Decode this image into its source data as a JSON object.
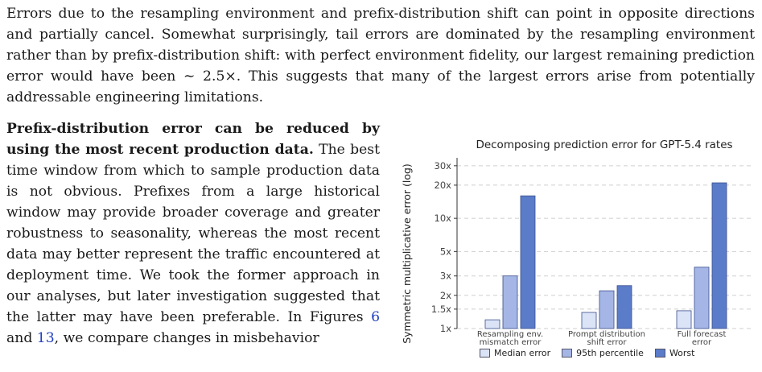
{
  "paragraph_top": "Errors due to the resampling environment and prefix-distribution shift can point in opposite directions and partially cancel. Somewhat surprisingly, tail errors are dominated by the resampling environment rather than by prefix-distribution shift: with perfect environment fidelity, our largest remaining prediction error would have been ∼ 2.5×. This suggests that many of the largest errors arise from potentially addressable engineering limitations.",
  "left_column": {
    "lead": "Prefix-distribution error can be reduced by using the most recent production data.",
    "body_1": " The best time window from which to sample production data is not obvious. Prefixes from a large historical window may provide broader coverage and greater robustness to seasonality, whereas the most recent data may better represent the traffic encountered at deployment time. We took the former approach in our analyses, but later investigation suggested that the latter may have been preferable. In Figures ",
    "ref_1": "6",
    "body_2": " and ",
    "ref_2": "13",
    "body_3": ", we compare changes in misbehavior"
  },
  "chart_data": {
    "type": "bar",
    "title": "Decomposing prediction error for GPT-5.4 rates",
    "ylabel": "Symmetric multiplicative error (log)",
    "xlabel": "",
    "yscale": "log",
    "ylim": [
      1,
      32
    ],
    "yticks": [
      1,
      1.5,
      2,
      3,
      5,
      10,
      20,
      30
    ],
    "ytick_labels": [
      "1x",
      "1.5x",
      "2x",
      "3x",
      "5x",
      "10x",
      "20x",
      "30x"
    ],
    "grid": "horizontal dashed",
    "legend_position": "bottom",
    "categories": [
      [
        "Resampling env.",
        "mismatch error"
      ],
      [
        "Prompt distribution",
        "shift error"
      ],
      [
        "Full forecast",
        "error"
      ]
    ],
    "series": [
      {
        "name": "Median error",
        "color": "#dbe3f7",
        "values": [
          1.2,
          1.4,
          1.45
        ]
      },
      {
        "name": "95th percentile",
        "color": "#a5b6e6",
        "values": [
          3.0,
          2.2,
          3.6
        ]
      },
      {
        "name": "Worst",
        "color": "#5b7cc9",
        "values": [
          16.0,
          2.45,
          21.0
        ]
      }
    ]
  }
}
